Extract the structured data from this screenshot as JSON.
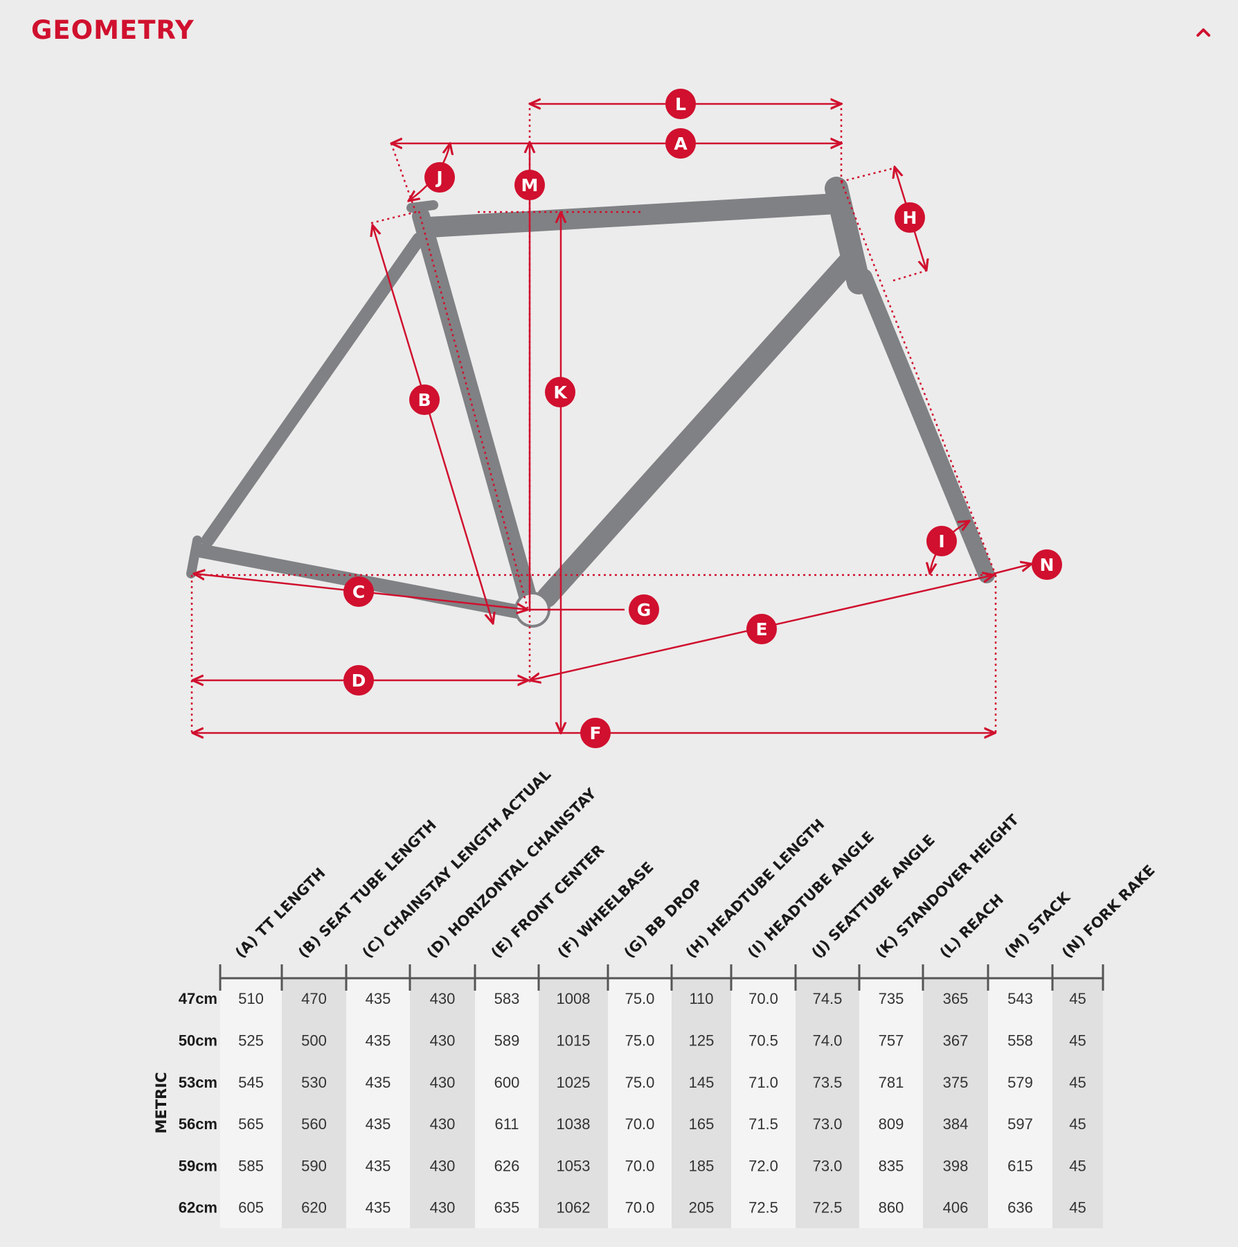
{
  "header": {
    "title": "GEOMETRY",
    "collapse_icon": "chevron-up-icon"
  },
  "colors": {
    "accent": "#d0102e",
    "frame": "#808184",
    "background": "#ececec",
    "cell_light": "#f4f4f4",
    "cell_dark": "#e0e0e0"
  },
  "diagram": {
    "labels": [
      "L",
      "A",
      "J",
      "M",
      "H",
      "K",
      "B",
      "I",
      "N",
      "C",
      "G",
      "E",
      "D",
      "F"
    ]
  },
  "table": {
    "unit_label": "METRIC",
    "columns": [
      "(A) TT LENGTH",
      "(B) SEAT TUBE LENGTH",
      "(C) CHAINSTAY LENGTH ACTUAL",
      "(D) HORIZONTAL CHAINSTAY",
      "(E) FRONT CENTER",
      "(F) WHEELBASE",
      "(G) BB DROP",
      "(H) HEADTUBE LENGTH",
      "(I) HEADTUBE ANGLE",
      "(J) SEATTUBE ANGLE",
      "(K) STANDOVER HEIGHT",
      "(L) REACH",
      "(M) STACK",
      "(N) FORK RAKE"
    ],
    "rows": [
      {
        "size": "47cm",
        "values": [
          "510",
          "470",
          "435",
          "430",
          "583",
          "1008",
          "75.0",
          "110",
          "70.0",
          "74.5",
          "735",
          "365",
          "543",
          "45"
        ]
      },
      {
        "size": "50cm",
        "values": [
          "525",
          "500",
          "435",
          "430",
          "589",
          "1015",
          "75.0",
          "125",
          "70.5",
          "74.0",
          "757",
          "367",
          "558",
          "45"
        ]
      },
      {
        "size": "53cm",
        "values": [
          "545",
          "530",
          "435",
          "430",
          "600",
          "1025",
          "75.0",
          "145",
          "71.0",
          "73.5",
          "781",
          "375",
          "579",
          "45"
        ]
      },
      {
        "size": "56cm",
        "values": [
          "565",
          "560",
          "435",
          "430",
          "611",
          "1038",
          "70.0",
          "165",
          "71.5",
          "73.0",
          "809",
          "384",
          "597",
          "45"
        ]
      },
      {
        "size": "59cm",
        "values": [
          "585",
          "590",
          "435",
          "430",
          "626",
          "1053",
          "70.0",
          "185",
          "72.0",
          "73.0",
          "835",
          "398",
          "615",
          "45"
        ]
      },
      {
        "size": "62cm",
        "values": [
          "605",
          "620",
          "435",
          "430",
          "635",
          "1062",
          "70.0",
          "205",
          "72.5",
          "72.5",
          "860",
          "406",
          "636",
          "45"
        ]
      }
    ]
  }
}
